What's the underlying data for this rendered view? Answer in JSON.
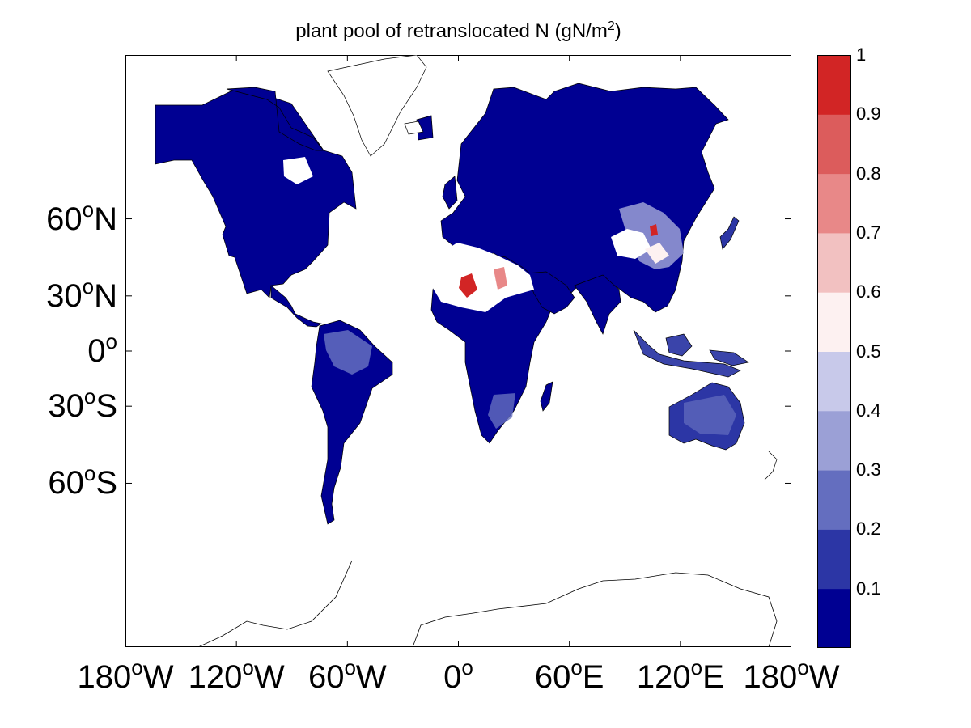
{
  "title": {
    "main": "plant pool of retranslocated N (gN/m",
    "sup": "2",
    "end": ")"
  },
  "axes": {
    "lat_ticks": [
      {
        "value": 60,
        "num": "60",
        "deg": "o",
        "hemi": "N"
      },
      {
        "value": 30,
        "num": "30",
        "deg": "o",
        "hemi": "N"
      },
      {
        "value": 0,
        "num": "0",
        "deg": "o",
        "hemi": ""
      },
      {
        "value": -30,
        "num": "30",
        "deg": "o",
        "hemi": "S"
      },
      {
        "value": -60,
        "num": "60",
        "deg": "o",
        "hemi": "S"
      }
    ],
    "lon_ticks": [
      {
        "value": -180,
        "num": "180",
        "deg": "o",
        "hemi": "W"
      },
      {
        "value": -120,
        "num": "120",
        "deg": "o",
        "hemi": "W"
      },
      {
        "value": -60,
        "num": "60",
        "deg": "o",
        "hemi": "W"
      },
      {
        "value": 0,
        "num": "0",
        "deg": "o",
        "hemi": ""
      },
      {
        "value": 60,
        "num": "60",
        "deg": "o",
        "hemi": "E"
      },
      {
        "value": 120,
        "num": "120",
        "deg": "o",
        "hemi": "E"
      },
      {
        "value": 180,
        "num": "180",
        "deg": "o",
        "hemi": "W"
      }
    ]
  },
  "colorbar": {
    "ticks": [
      "0.1",
      "0.2",
      "0.3",
      "0.4",
      "0.5",
      "0.6",
      "0.7",
      "0.8",
      "0.9",
      "1"
    ],
    "levels": [
      0.0,
      0.1,
      0.2,
      0.3,
      0.4,
      0.5,
      0.6,
      0.7,
      0.8,
      0.9,
      1.0
    ],
    "colors": [
      "#000092",
      "#2c36a5",
      "#646ebf",
      "#9ba0d6",
      "#c8c9ea",
      "#fdf1f1",
      "#f2c1c1",
      "#e88888",
      "#dc5c5c",
      "#d22525"
    ]
  },
  "map": {
    "projection": "Mercator",
    "lon_range": [
      -180,
      180
    ],
    "lat_range": [
      -84,
      84
    ]
  }
}
